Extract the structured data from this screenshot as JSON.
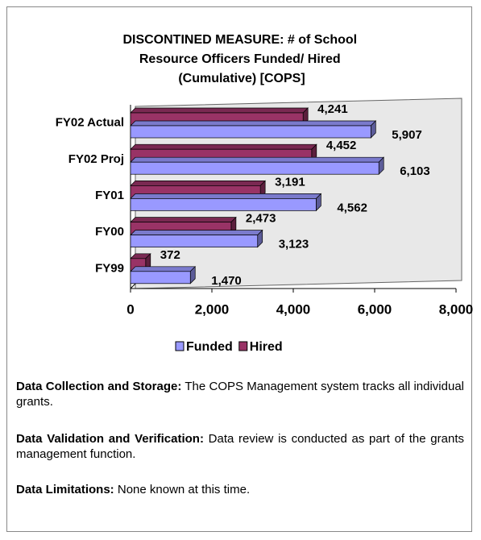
{
  "chart_data": {
    "type": "bar",
    "orientation": "horizontal",
    "three_d": true,
    "title": "DISCONTINED MEASURE: # of School Resource Officers Funded/ Hired (Cumulative) [COPS]",
    "categories": [
      "FY02 Actual",
      "FY02 Proj",
      "FY01",
      "FY00",
      "FY99"
    ],
    "series": [
      {
        "name": "Funded",
        "color": "#9999ff",
        "values": [
          5907,
          6103,
          4562,
          3123,
          1470
        ],
        "value_labels": [
          "5,907",
          "6,103",
          "4,562",
          "3,123",
          "1,470"
        ]
      },
      {
        "name": "Hired",
        "color": "#993366",
        "values": [
          4241,
          4452,
          3191,
          2473,
          372
        ],
        "value_labels": [
          "4,241",
          "4,452",
          "3,191",
          "2,473",
          "372"
        ]
      }
    ],
    "xlim": [
      0,
      8000
    ],
    "xticks": [
      0,
      {
        "value": 2000,
        "label": "2,000"
      },
      {
        "value": 4000,
        "label": "4,000"
      },
      {
        "value": 6000,
        "label": "6,000"
      },
      {
        "value": 8000,
        "label": "8,000"
      }
    ],
    "legend": "bottom"
  },
  "notes": [
    {
      "label": "Data Collection and Storage:",
      "text": "The COPS Management system tracks all individual grants."
    },
    {
      "label": "Data Validation and Verification:",
      "text": "Data review is conducted as part of the grants management function."
    },
    {
      "label": "Data Limitations:",
      "text": "None known at this time."
    }
  ]
}
